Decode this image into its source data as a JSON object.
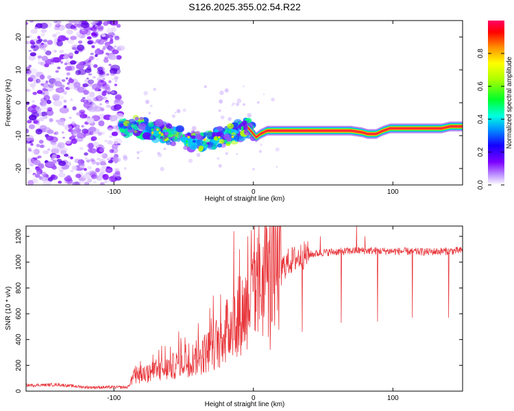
{
  "figure": {
    "title": "S126.2025.355.02.54.R22"
  },
  "chart_data": [
    {
      "type": "heatmap",
      "name": "spectrogram",
      "xlabel": "Height of straight line (km)",
      "ylabel": "Frequency (Hz)",
      "xlim": [
        -163,
        150
      ],
      "ylim": [
        -25,
        25
      ],
      "xticks": [
        -100,
        0,
        100
      ],
      "yticks": [
        -20,
        -10,
        0,
        10,
        20
      ],
      "colorbar": {
        "label": "Normalized spectral amplitude",
        "range": [
          0,
          1
        ],
        "ticks": [
          "0.0",
          "0.2",
          "0.4",
          "0.6",
          "0.8"
        ],
        "tick_values": [
          0.0,
          0.2,
          0.4,
          0.6,
          0.8
        ]
      },
      "noise_region_x": [
        -163,
        -95
      ],
      "ridge": [
        {
          "x": -95,
          "f": -7.5
        },
        {
          "x": -85,
          "f": -7.0
        },
        {
          "x": -75,
          "f": -8.0
        },
        {
          "x": -65,
          "f": -9.0
        },
        {
          "x": -55,
          "f": -10.0
        },
        {
          "x": -45,
          "f": -11.5
        },
        {
          "x": -35,
          "f": -12.0
        },
        {
          "x": -25,
          "f": -10.5
        },
        {
          "x": -18,
          "f": -10.0
        },
        {
          "x": -12,
          "f": -9.0
        },
        {
          "x": -7,
          "f": -8.0
        },
        {
          "x": -4,
          "f": -7.5
        },
        {
          "x": -1,
          "f": -9.0
        },
        {
          "x": 2,
          "f": -10.5
        },
        {
          "x": 5,
          "f": -9.5
        },
        {
          "x": 10,
          "f": -8.5
        },
        {
          "x": 70,
          "f": -8.5
        },
        {
          "x": 78,
          "f": -9.0
        },
        {
          "x": 82,
          "f": -9.5
        },
        {
          "x": 88,
          "f": -9.5
        },
        {
          "x": 93,
          "f": -8.5
        },
        {
          "x": 98,
          "f": -7.8
        },
        {
          "x": 135,
          "f": -7.8
        },
        {
          "x": 141,
          "f": -7.2
        },
        {
          "x": 150,
          "f": -7.2
        }
      ]
    },
    {
      "type": "line",
      "name": "snr",
      "xlabel": "Height of straight line (km)",
      "ylabel": "SNR (10 * v/v)",
      "xlim": [
        -163,
        150
      ],
      "ylim": [
        0,
        1280
      ],
      "xticks": [
        -100,
        0,
        100
      ],
      "yticks": [
        0,
        200,
        400,
        600,
        800,
        1000,
        1200
      ],
      "color": "#e8383d",
      "trend": [
        {
          "x": -163,
          "y": 45
        },
        {
          "x": -140,
          "y": 50
        },
        {
          "x": -120,
          "y": 30
        },
        {
          "x": -90,
          "y": 30
        },
        {
          "x": -85,
          "y": 120
        },
        {
          "x": -70,
          "y": 150
        },
        {
          "x": -60,
          "y": 180
        },
        {
          "x": -50,
          "y": 230
        },
        {
          "x": -40,
          "y": 260
        },
        {
          "x": -30,
          "y": 330
        },
        {
          "x": -20,
          "y": 450
        },
        {
          "x": -12,
          "y": 560
        },
        {
          "x": -5,
          "y": 650
        },
        {
          "x": 0,
          "y": 750
        },
        {
          "x": 5,
          "y": 820
        },
        {
          "x": 10,
          "y": 880
        },
        {
          "x": 18,
          "y": 930
        },
        {
          "x": 25,
          "y": 1000
        },
        {
          "x": 35,
          "y": 1050
        },
        {
          "x": 50,
          "y": 1075
        },
        {
          "x": 75,
          "y": 1090
        },
        {
          "x": 100,
          "y": 1085
        },
        {
          "x": 125,
          "y": 1080
        },
        {
          "x": 150,
          "y": 1090
        }
      ],
      "spikes": [
        {
          "x": -14,
          "y": 1240
        },
        {
          "x": -10,
          "y": 1100
        },
        {
          "x": -4,
          "y": 1200
        },
        {
          "x": 9,
          "y": 1280
        },
        {
          "x": 12,
          "y": 320
        },
        {
          "x": 20,
          "y": 820
        },
        {
          "x": 35,
          "y": 460
        },
        {
          "x": 48,
          "y": 1200
        },
        {
          "x": 63,
          "y": 530
        },
        {
          "x": 74,
          "y": 1280
        },
        {
          "x": 80,
          "y": 1200
        },
        {
          "x": 89,
          "y": 540
        },
        {
          "x": 114,
          "y": 570
        },
        {
          "x": 140,
          "y": 570
        }
      ]
    }
  ]
}
